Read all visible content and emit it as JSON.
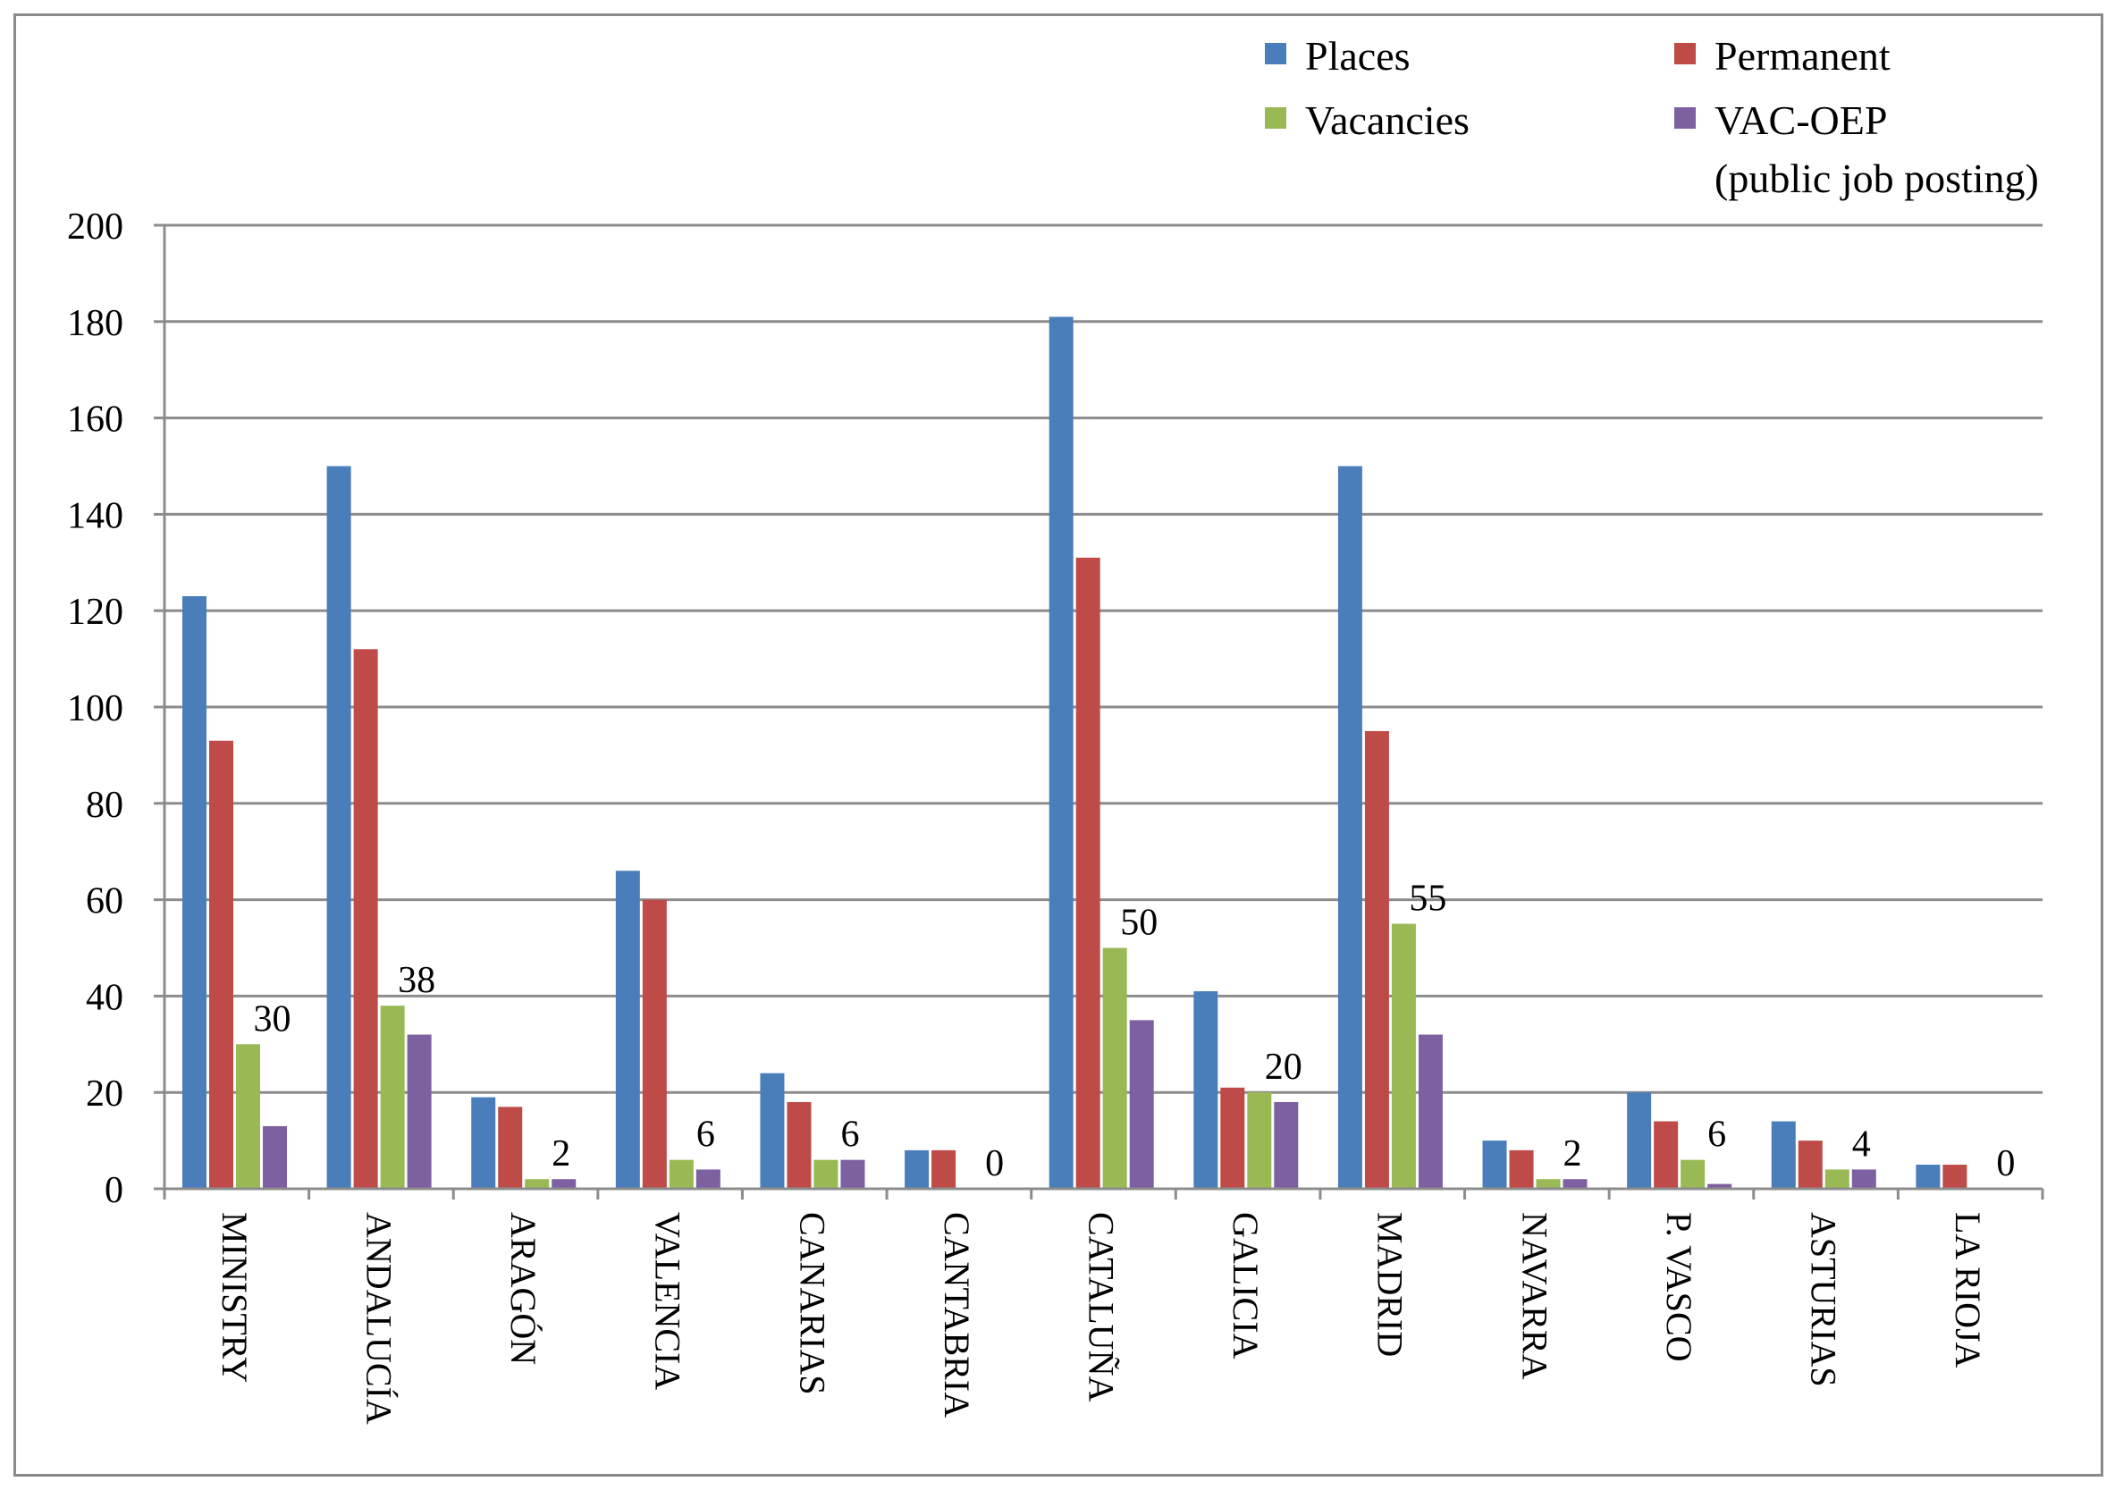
{
  "chart_data": {
    "type": "bar",
    "title": "",
    "xlabel": "",
    "ylabel": "",
    "ylim": [
      0,
      200
    ],
    "yticks": [
      0,
      20,
      40,
      60,
      80,
      100,
      120,
      140,
      160,
      180,
      200
    ],
    "grid": true,
    "legend_position": "top-right",
    "categories": [
      "MINISTRY",
      "ANDALUCÍA",
      "ARAGÓN",
      "VALENCIA",
      "CANARIAS",
      "CANTABRIA",
      "CATALUÑA",
      "GALICIA",
      "MADRID",
      "NAVARRA",
      "P. VASCO",
      "ASTURIAS",
      "LA RIOJA"
    ],
    "series": [
      {
        "name": "Places",
        "color": "#4a7ebb",
        "values": [
          123,
          150,
          19,
          66,
          24,
          8,
          181,
          41,
          150,
          10,
          20,
          14,
          5
        ]
      },
      {
        "name": "Permanent",
        "color": "#be4b48",
        "values": [
          93,
          112,
          17,
          60,
          18,
          8,
          131,
          21,
          95,
          8,
          14,
          10,
          5
        ]
      },
      {
        "name": "Vacancies",
        "color": "#98b954",
        "values": [
          30,
          38,
          2,
          6,
          6,
          0,
          50,
          20,
          55,
          2,
          6,
          4,
          0
        ]
      },
      {
        "name": "VAC-OEP (public job posting)",
        "color": "#7d60a0",
        "values": [
          13,
          32,
          2,
          4,
          6,
          0,
          35,
          18,
          32,
          2,
          1,
          4,
          0
        ]
      }
    ],
    "data_labels": [
      {
        "category": "MINISTRY",
        "text": "30"
      },
      {
        "category": "ANDALUCÍA",
        "text": "38"
      },
      {
        "category": "ARAGÓN",
        "text": "2"
      },
      {
        "category": "VALENCIA",
        "text": "6"
      },
      {
        "category": "CANARIAS",
        "text": "6"
      },
      {
        "category": "CANTABRIA",
        "text": "0"
      },
      {
        "category": "CATALUÑA",
        "text": "50"
      },
      {
        "category": "GALICIA",
        "text": "20"
      },
      {
        "category": "MADRID",
        "text": "55"
      },
      {
        "category": "NAVARRA",
        "text": "2"
      },
      {
        "category": "P. VASCO",
        "text": "6"
      },
      {
        "category": "ASTURIAS",
        "text": "4"
      },
      {
        "category": "LA RIOJA",
        "text": "0"
      }
    ],
    "legend": [
      {
        "label": "Places",
        "color": "#4a7ebb"
      },
      {
        "label": "Permanent",
        "color": "#be4b48"
      },
      {
        "label": "Vacancies",
        "color": "#98b954"
      },
      {
        "label": "VAC-OEP",
        "label_line2": "(public job posting)",
        "color": "#7d60a0"
      }
    ]
  }
}
